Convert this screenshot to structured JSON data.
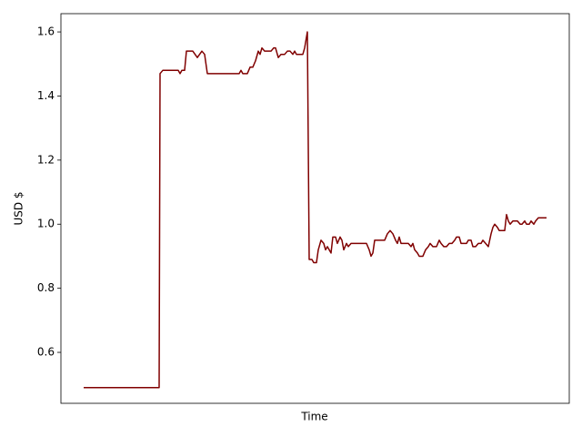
{
  "chart_data": {
    "type": "line",
    "xlabel": "Time",
    "ylabel": "USD $",
    "x": [
      0,
      83,
      84,
      87,
      104,
      106,
      108,
      111,
      113,
      120,
      125,
      130,
      133,
      136,
      171,
      173,
      175,
      180,
      183,
      186,
      189,
      192,
      194,
      196,
      199,
      206,
      209,
      211,
      214,
      217,
      221,
      224,
      227,
      230,
      232,
      234,
      241,
      243,
      246,
      248,
      251,
      253,
      256,
      258,
      261,
      264,
      266,
      268,
      270,
      272,
      274,
      277,
      279,
      282,
      284,
      286,
      289,
      291,
      294,
      311,
      314,
      316,
      318,
      320,
      331,
      334,
      337,
      340,
      343,
      345,
      347,
      349,
      357,
      360,
      362,
      364,
      367,
      369,
      373,
      376,
      379,
      381,
      384,
      388,
      391,
      393,
      396,
      399,
      402,
      405,
      408,
      410,
      413,
      415,
      421,
      423,
      426,
      428,
      431,
      434,
      437,
      439,
      442,
      445,
      448,
      450,
      452,
      455,
      457,
      463,
      465,
      467,
      469,
      472,
      477,
      480,
      482,
      485,
      487,
      490,
      492,
      495,
      497,
      500,
      509
    ],
    "series": [
      {
        "color": "#800000",
        "values": [
          0.49,
          0.49,
          1.47,
          1.48,
          1.48,
          1.47,
          1.48,
          1.48,
          1.54,
          1.54,
          1.52,
          1.54,
          1.53,
          1.47,
          1.47,
          1.48,
          1.47,
          1.47,
          1.49,
          1.49,
          1.51,
          1.54,
          1.53,
          1.55,
          1.54,
          1.54,
          1.55,
          1.55,
          1.52,
          1.53,
          1.53,
          1.54,
          1.54,
          1.53,
          1.54,
          1.53,
          1.53,
          1.55,
          1.6,
          0.89,
          0.89,
          0.88,
          0.88,
          0.92,
          0.95,
          0.94,
          0.92,
          0.93,
          0.92,
          0.91,
          0.96,
          0.96,
          0.94,
          0.96,
          0.95,
          0.92,
          0.94,
          0.93,
          0.94,
          0.94,
          0.92,
          0.9,
          0.91,
          0.95,
          0.95,
          0.97,
          0.98,
          0.97,
          0.95,
          0.94,
          0.96,
          0.94,
          0.94,
          0.93,
          0.94,
          0.92,
          0.91,
          0.9,
          0.9,
          0.92,
          0.93,
          0.94,
          0.93,
          0.93,
          0.95,
          0.94,
          0.93,
          0.93,
          0.94,
          0.94,
          0.95,
          0.96,
          0.96,
          0.94,
          0.94,
          0.95,
          0.95,
          0.93,
          0.93,
          0.94,
          0.94,
          0.95,
          0.94,
          0.93,
          0.97,
          0.99,
          1.0,
          0.99,
          0.98,
          0.98,
          1.03,
          1.01,
          1.0,
          1.01,
          1.01,
          1.0,
          1.0,
          1.01,
          1.0,
          1.0,
          1.01,
          1.0,
          1.01,
          1.02,
          1.02
        ]
      }
    ],
    "xlim": [
      -25,
      534
    ],
    "ylim": [
      0.441,
      1.657
    ],
    "yticks": [
      0.6,
      0.8,
      {
        "value": 1,
        "label": "1.0"
      },
      1.2,
      1.4,
      1.6
    ]
  }
}
